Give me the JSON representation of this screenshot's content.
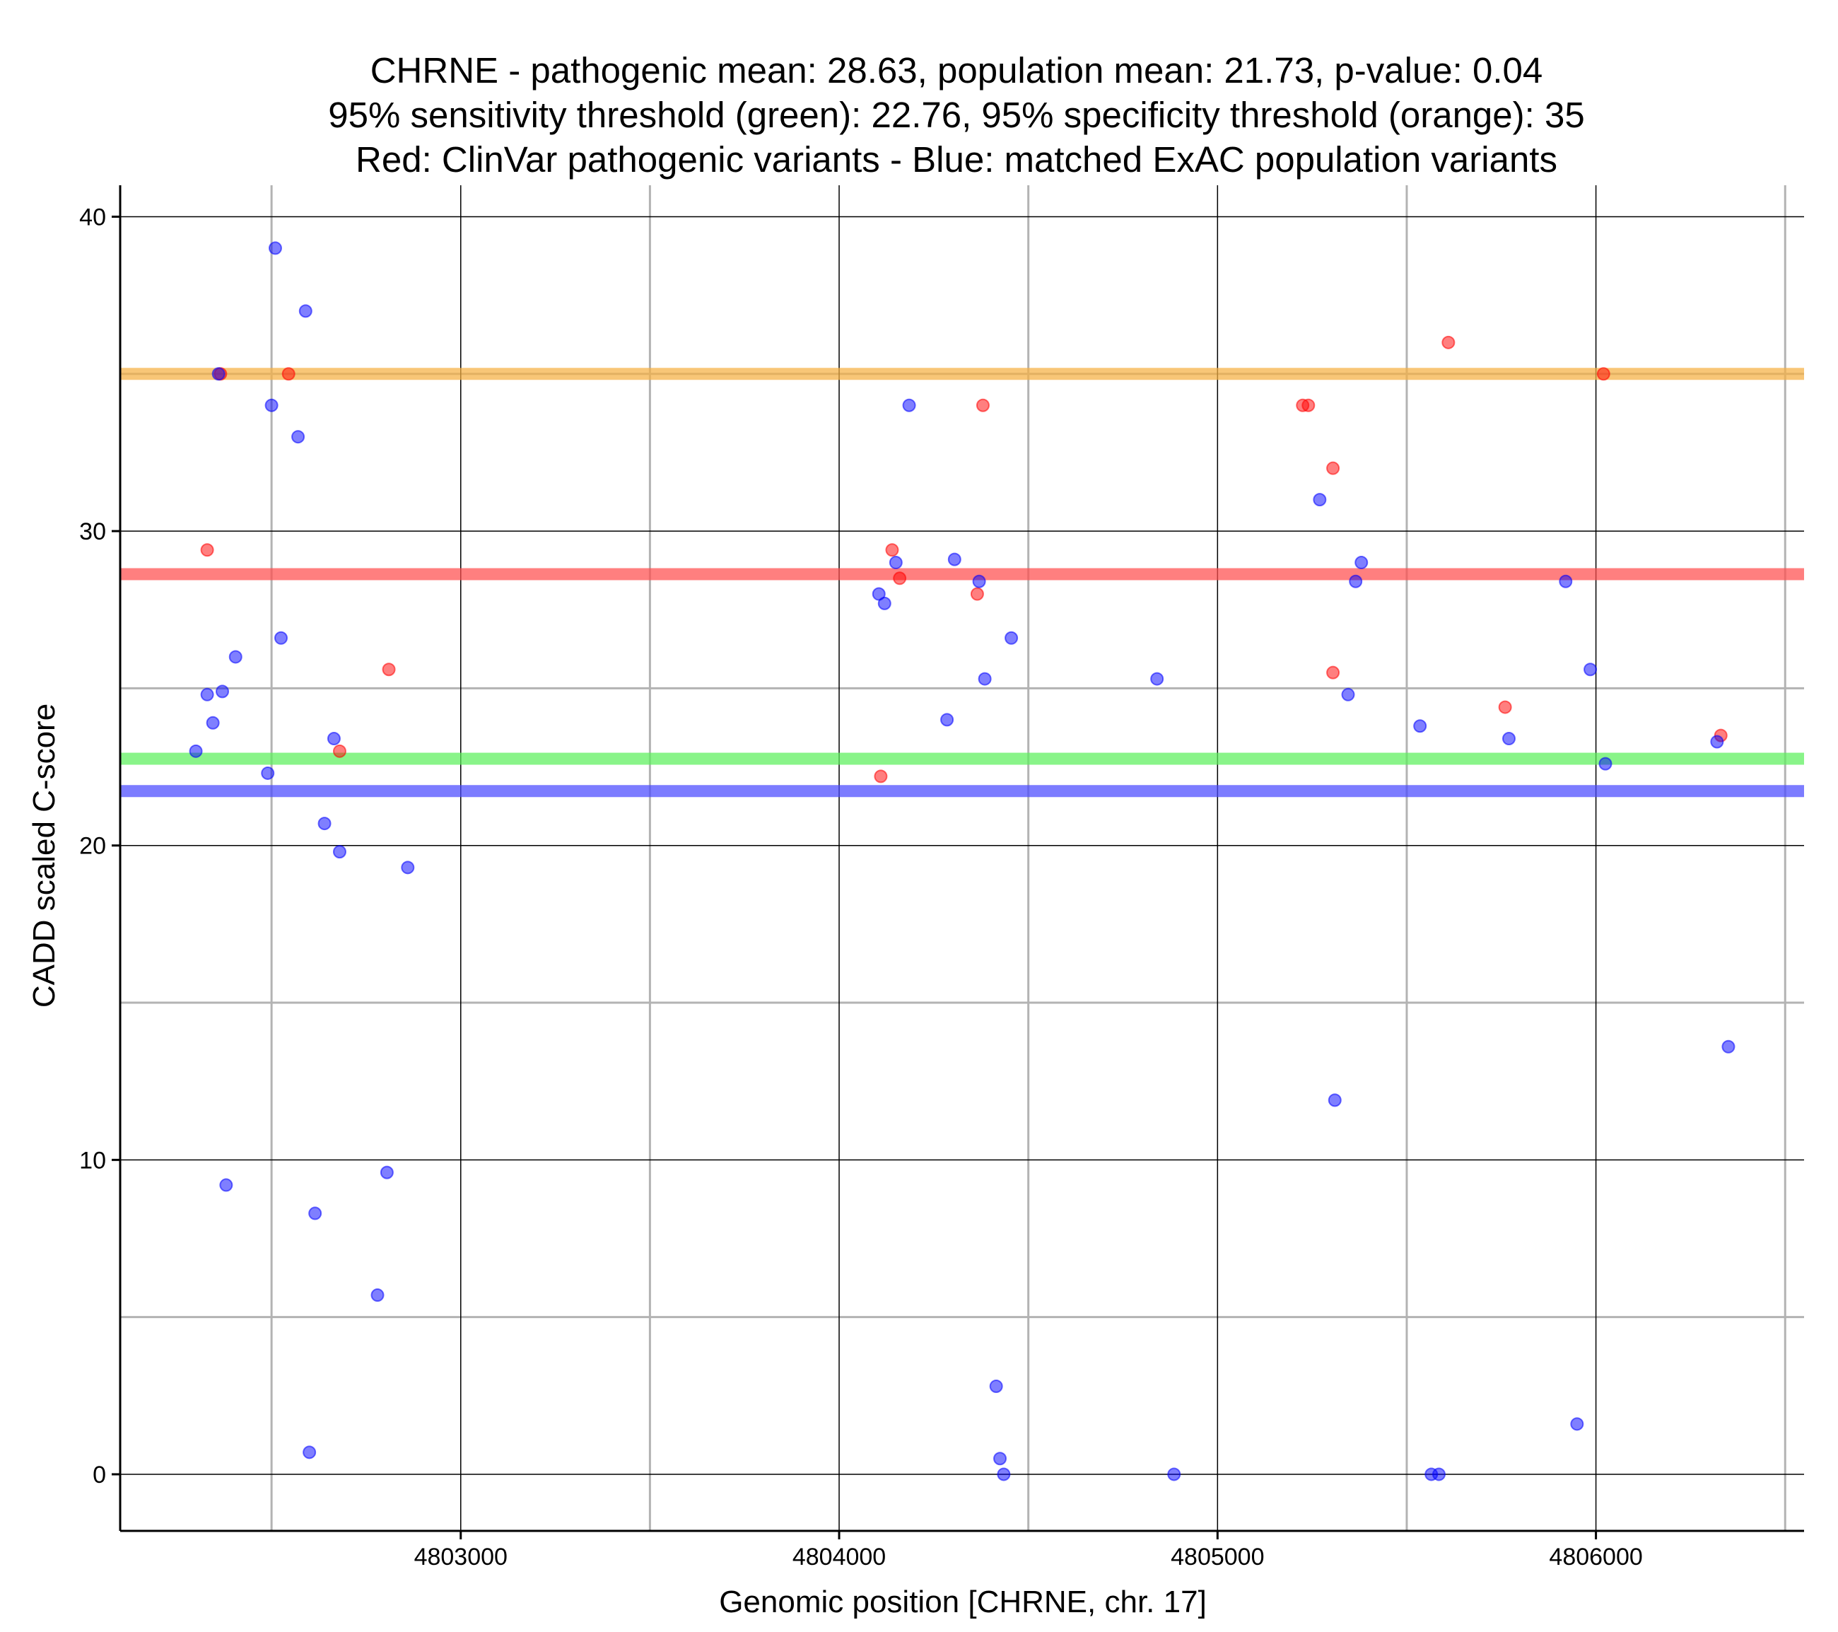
{
  "chart_data": {
    "type": "scatter",
    "title": [
      "CHRNE - pathogenic mean: 28.63, population mean: 21.73, p-value: 0.04",
      "95% sensitivity threshold (green): 22.76, 95% specificity threshold (orange): 35",
      "Red: ClinVar pathogenic variants - Blue: matched ExAC population variants"
    ],
    "xlabel": "Genomic position [CHRNE, chr. 17]",
    "ylabel": "CADD scaled C-score",
    "xlim": [
      4802100,
      4806550
    ],
    "ylim": [
      -1.8,
      41
    ],
    "x_ticks": [
      4803000,
      4804000,
      4805000,
      4806000
    ],
    "x_tick_labels": [
      "4803000",
      "4804000",
      "4805000",
      "4806000"
    ],
    "x_minor_grid": [
      4802500,
      4803500,
      4804500,
      4805500,
      4806500
    ],
    "y_ticks": [
      0,
      10,
      20,
      30,
      40
    ],
    "y_tick_labels": [
      "0",
      "10",
      "20",
      "30",
      "40"
    ],
    "y_minor_grid": [
      5,
      15,
      25,
      35
    ],
    "grid": true,
    "reference_lines": [
      {
        "name": "specificity threshold",
        "value": 35,
        "color": "#f5b042"
      },
      {
        "name": "pathogenic mean",
        "value": 28.63,
        "color": "#ff4d4d"
      },
      {
        "name": "sensitivity threshold",
        "value": 22.76,
        "color": "#5cf05c"
      },
      {
        "name": "population mean",
        "value": 21.73,
        "color": "#4a4aff"
      }
    ],
    "series": [
      {
        "name": "ClinVar pathogenic variants",
        "color": "#ff0000",
        "points": [
          [
            4802330,
            29.4
          ],
          [
            4802365,
            35
          ],
          [
            4802545,
            35
          ],
          [
            4802680,
            23
          ],
          [
            4802810,
            25.6
          ],
          [
            4804110,
            22.2
          ],
          [
            4804140,
            29.4
          ],
          [
            4804160,
            28.5
          ],
          [
            4804365,
            28
          ],
          [
            4804380,
            34
          ],
          [
            4805225,
            34
          ],
          [
            4805240,
            34
          ],
          [
            4805305,
            32
          ],
          [
            4805305,
            25.5
          ],
          [
            4805610,
            36
          ],
          [
            4805760,
            24.4
          ],
          [
            4806020,
            35
          ],
          [
            4806330,
            23.5
          ]
        ]
      },
      {
        "name": "matched ExAC population variants",
        "color": "#0000ff",
        "points": [
          [
            4802300,
            23
          ],
          [
            4802330,
            24.8
          ],
          [
            4802345,
            23.9
          ],
          [
            4802360,
            35
          ],
          [
            4802370,
            24.9
          ],
          [
            4802380,
            9.2
          ],
          [
            4802405,
            26
          ],
          [
            4802490,
            22.3
          ],
          [
            4802500,
            34
          ],
          [
            4802510,
            39
          ],
          [
            4802525,
            26.6
          ],
          [
            4802570,
            33
          ],
          [
            4802590,
            37
          ],
          [
            4802600,
            0.7
          ],
          [
            4802615,
            8.3
          ],
          [
            4802640,
            20.7
          ],
          [
            4802665,
            23.4
          ],
          [
            4802680,
            19.8
          ],
          [
            4802780,
            5.7
          ],
          [
            4802805,
            9.6
          ],
          [
            4802860,
            19.3
          ],
          [
            4804105,
            28
          ],
          [
            4804120,
            27.7
          ],
          [
            4804150,
            29
          ],
          [
            4804185,
            34
          ],
          [
            4804285,
            24
          ],
          [
            4804305,
            29.1
          ],
          [
            4804370,
            28.4
          ],
          [
            4804385,
            25.3
          ],
          [
            4804415,
            2.8
          ],
          [
            4804425,
            0.5
          ],
          [
            4804435,
            0
          ],
          [
            4804455,
            26.6
          ],
          [
            4804840,
            25.3
          ],
          [
            4804885,
            0
          ],
          [
            4805270,
            31
          ],
          [
            4805310,
            11.9
          ],
          [
            4805345,
            24.8
          ],
          [
            4805365,
            28.4
          ],
          [
            4805380,
            29
          ],
          [
            4805535,
            23.8
          ],
          [
            4805565,
            0
          ],
          [
            4805585,
            0
          ],
          [
            4805770,
            23.4
          ],
          [
            4805920,
            28.4
          ],
          [
            4805950,
            1.6
          ],
          [
            4805985,
            25.6
          ],
          [
            4806025,
            22.6
          ],
          [
            4806320,
            23.3
          ],
          [
            4806350,
            13.6
          ]
        ]
      }
    ]
  }
}
